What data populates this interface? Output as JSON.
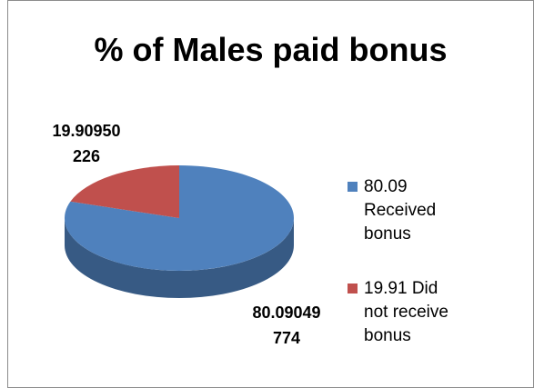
{
  "chart_data": {
    "type": "pie",
    "title": "% of Males paid bonus",
    "categories": [
      "80.09 Received bonus",
      "19.91 Did not receive bonus"
    ],
    "values": [
      80.09049774,
      19.90950226
    ],
    "colors": [
      "#4f81bd",
      "#c0504d"
    ],
    "legend": "right"
  }
}
